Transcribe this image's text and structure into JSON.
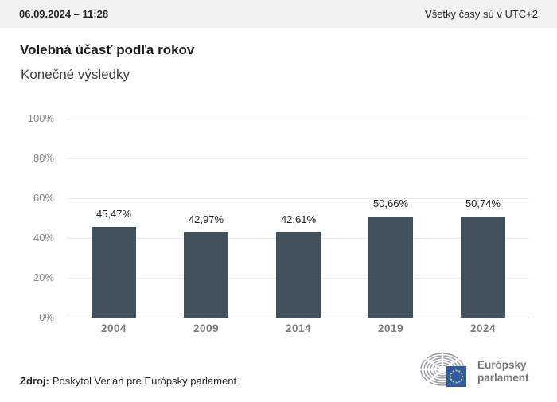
{
  "topbar": {
    "date": "06.09.2024 – 11:28",
    "timezone_note": "Všetky časy sú v UTC+2"
  },
  "header": {
    "title": "Volebná účasť podľa rokov",
    "subtitle": "Konečné výsledky"
  },
  "chart_data": {
    "type": "bar",
    "title": "Volebná účasť podľa rokov",
    "subtitle": "Konečné výsledky",
    "categories": [
      "2004",
      "2009",
      "2014",
      "2019",
      "2024"
    ],
    "values": [
      45.47,
      42.97,
      42.61,
      50.66,
      50.74
    ],
    "value_labels": [
      "45,47%",
      "42,97%",
      "42,61%",
      "50,66%",
      "50,74%"
    ],
    "xlabel": "",
    "ylabel": "",
    "ylim": [
      0,
      100
    ],
    "yticks": [
      0,
      20,
      40,
      60,
      80,
      100
    ],
    "ytick_labels": [
      "0%",
      "20%",
      "40%",
      "60%",
      "80%",
      "100%"
    ],
    "grid": true,
    "legend": false,
    "bar_color": "#41525c",
    "gridline_color": "#ebebeb",
    "baseline_color": "#c7d2e0"
  },
  "source": {
    "label": "Zdroj:",
    "text": "Poskytol Verian pre Európsky parlament"
  },
  "logo": {
    "line1": "Európsky",
    "line2": "parlament",
    "arc_color": "#99a1a8",
    "flag_color": "#2d5ca7",
    "star_color": "#f3cb3f"
  }
}
